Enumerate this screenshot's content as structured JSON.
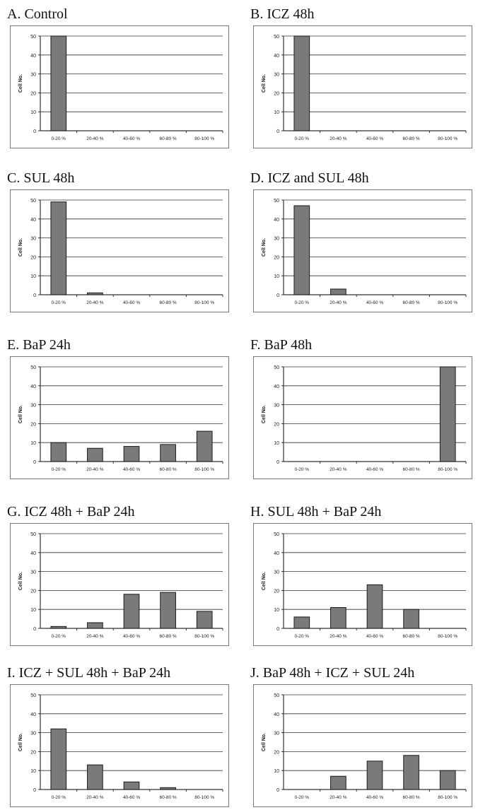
{
  "figure": {
    "panels": [
      {
        "title": "A.  Control"
      },
      {
        "title": "B.  ICZ 48h"
      },
      {
        "title": "C.  SUL 48h"
      },
      {
        "title": "D.  ICZ and SUL 48h"
      },
      {
        "title": "E.  BaP 24h"
      },
      {
        "title": "F.  BaP 48h"
      },
      {
        "title": "G.  ICZ 48h + BaP 24h"
      },
      {
        "title": "H.  SUL 48h + BaP 24h"
      },
      {
        "title": "I.  ICZ + SUL 48h + BaP 24h"
      },
      {
        "title": "J.  BaP 48h + ICZ + SUL 24h"
      }
    ]
  },
  "colors": {
    "bar": "#7a7a7a",
    "bar_stroke": "#1a1a1a",
    "grid": "#333333",
    "frame": "#777777"
  },
  "chart_data": [
    {
      "type": "bar",
      "title": "A.  Control",
      "ylabel": "Cell No.",
      "categories": [
        "0-20 %",
        "20-40 %",
        "40-60 %",
        "60-80 %",
        "80-100 %"
      ],
      "values": [
        50,
        0,
        0,
        0,
        0
      ],
      "ylim": [
        0,
        50
      ],
      "yticks": [
        0,
        10,
        20,
        30,
        40,
        50
      ],
      "grid": true
    },
    {
      "type": "bar",
      "title": "B.  ICZ 48h",
      "ylabel": "Cell No.",
      "categories": [
        "0-20 %",
        "20-40 %",
        "40-60 %",
        "60-80 %",
        "80-100 %"
      ],
      "values": [
        50,
        0,
        0,
        0,
        0
      ],
      "ylim": [
        0,
        50
      ],
      "yticks": [
        0,
        10,
        20,
        30,
        40,
        50
      ],
      "grid": true
    },
    {
      "type": "bar",
      "title": "C.  SUL 48h",
      "ylabel": "Cell No.",
      "categories": [
        "0-20 %",
        "20-40 %",
        "40-60 %",
        "60-80 %",
        "80-100 %"
      ],
      "values": [
        49,
        1,
        0,
        0,
        0
      ],
      "ylim": [
        0,
        50
      ],
      "yticks": [
        0,
        10,
        20,
        30,
        40,
        50
      ],
      "grid": true
    },
    {
      "type": "bar",
      "title": "D.  ICZ and SUL 48h",
      "ylabel": "Cell No.",
      "categories": [
        "0-20 %",
        "20-40 %",
        "40-60 %",
        "60-80 %",
        "80-100 %"
      ],
      "values": [
        47,
        3,
        0,
        0,
        0
      ],
      "ylim": [
        0,
        50
      ],
      "yticks": [
        0,
        10,
        20,
        30,
        40,
        50
      ],
      "grid": true
    },
    {
      "type": "bar",
      "title": "E.  BaP 24h",
      "ylabel": "Cell No.",
      "categories": [
        "0-20 %",
        "20-40 %",
        "40-60 %",
        "60-80 %",
        "80-100 %"
      ],
      "values": [
        10,
        7,
        8,
        9,
        16
      ],
      "ylim": [
        0,
        50
      ],
      "yticks": [
        0,
        10,
        20,
        30,
        40,
        50
      ],
      "grid": true
    },
    {
      "type": "bar",
      "title": "F.  BaP 48h",
      "ylabel": "Cell No.",
      "categories": [
        "0-20 %",
        "20-40 %",
        "40-60 %",
        "60-80 %",
        "80-100 %"
      ],
      "values": [
        0,
        0,
        0,
        0,
        50
      ],
      "ylim": [
        0,
        50
      ],
      "yticks": [
        0,
        10,
        20,
        30,
        40,
        50
      ],
      "grid": true
    },
    {
      "type": "bar",
      "title": "G.  ICZ 48h + BaP 24h",
      "ylabel": "Cell No.",
      "categories": [
        "0-20 %",
        "20-40 %",
        "40-60 %",
        "60-80 %",
        "80-100 %"
      ],
      "values": [
        1,
        3,
        18,
        19,
        9
      ],
      "ylim": [
        0,
        50
      ],
      "yticks": [
        0,
        10,
        20,
        30,
        40,
        50
      ],
      "grid": true
    },
    {
      "type": "bar",
      "title": "H.  SUL 48h + BaP 24h",
      "ylabel": "Cell No.",
      "categories": [
        "0-20 %",
        "20-40 %",
        "40-60 %",
        "60-80 %",
        "80-100 %"
      ],
      "values": [
        6,
        11,
        23,
        10,
        0
      ],
      "ylim": [
        0,
        50
      ],
      "yticks": [
        0,
        10,
        20,
        30,
        40,
        50
      ],
      "grid": true
    },
    {
      "type": "bar",
      "title": "I.  ICZ + SUL 48h + BaP 24h",
      "ylabel": "Cell No.",
      "categories": [
        "0-20 %",
        "20-40 %",
        "40-60 %",
        "60-80 %",
        "80-100 %"
      ],
      "values": [
        32,
        13,
        4,
        1,
        0
      ],
      "ylim": [
        0,
        50
      ],
      "yticks": [
        0,
        10,
        20,
        30,
        40,
        50
      ],
      "grid": true
    },
    {
      "type": "bar",
      "title": "J.  BaP 48h + ICZ + SUL 24h",
      "ylabel": "Cell No.",
      "categories": [
        "0-20 %",
        "20-40 %",
        "40-60 %",
        "60-80 %",
        "80-100 %"
      ],
      "values": [
        0,
        7,
        15,
        18,
        10
      ],
      "ylim": [
        0,
        50
      ],
      "yticks": [
        0,
        10,
        20,
        30,
        40,
        50
      ],
      "grid": true
    }
  ]
}
